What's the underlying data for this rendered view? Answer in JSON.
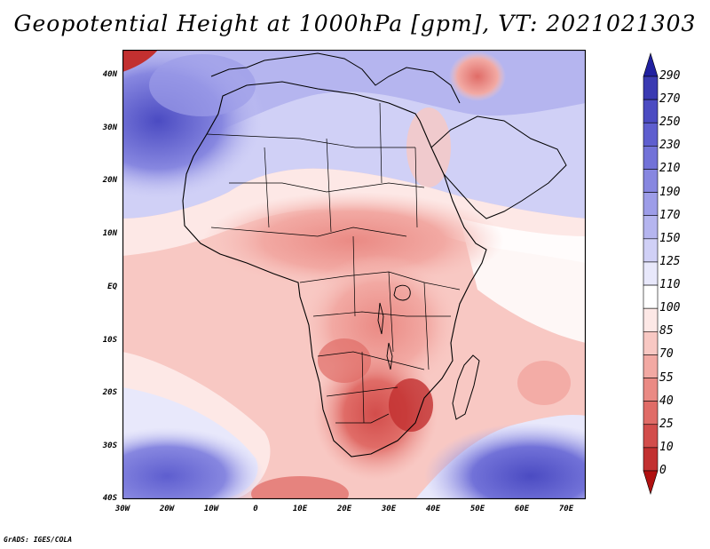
{
  "title": "Geopotential Height at 1000hPa [gpm], VT: 2021021303",
  "footer": "GrADS: IGES/COLA",
  "lat_labels": [
    "40N",
    "30N",
    "20N",
    "10N",
    "EQ",
    "10S",
    "20S",
    "30S",
    "40S"
  ],
  "lon_labels": [
    "30W",
    "20W",
    "10W",
    "0",
    "10E",
    "20E",
    "30E",
    "40E",
    "50E",
    "60E",
    "70E"
  ],
  "colorbar": {
    "labels": [
      "290",
      "270",
      "250",
      "230",
      "210",
      "190",
      "170",
      "150",
      "125",
      "110",
      "100",
      "85",
      "70",
      "55",
      "40",
      "25",
      "10",
      "0"
    ],
    "colors": [
      "#2b2b9e",
      "#3a3ab2",
      "#4b4bc2",
      "#5e5ecf",
      "#7272d8",
      "#8787e0",
      "#9d9de8",
      "#b5b5ef",
      "#d0d0f6",
      "#e8e8fb",
      "#ffffff",
      "#fde8e6",
      "#f8c8c3",
      "#f2a9a3",
      "#ea8a84",
      "#e06c67",
      "#d24d4b",
      "#c23030",
      "#b01818"
    ],
    "top_arrow_color": "#2020a0",
    "bottom_arrow_color": "#b01010"
  }
}
